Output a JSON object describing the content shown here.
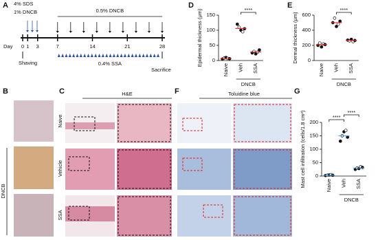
{
  "panel_labels": [
    "A",
    "B",
    "C",
    "D",
    "E",
    "F",
    "G"
  ],
  "timeline": {
    "day_label": "Day",
    "days": [
      0,
      1,
      3,
      7,
      14,
      21,
      28
    ],
    "sds": "4% SDS",
    "dncb_initial": "1% DNCB",
    "dncb_repeat": "0.5% DNCB",
    "ssa": "0.4% SSA",
    "shaving": "Shaving",
    "sacrifice": "Sacrifice"
  },
  "image_rows": [
    "Naive",
    "Vehicle",
    "SSA"
  ],
  "image_group": "DNCB",
  "stain_titles": [
    "H&E",
    "Toluidine blue"
  ],
  "chart_data": [
    {
      "type": "dot",
      "ylabel": "Epidermal thickness (μm)",
      "categories": [
        "Naive",
        "Veh",
        "SSA"
      ],
      "group_label": "DNCB",
      "ylim": [
        0,
        150
      ],
      "yticks": [
        0,
        50,
        100,
        150
      ],
      "values": [
        [
          5,
          8,
          10,
          7,
          6
        ],
        [
          120,
          110,
          100,
          95,
          105
        ],
        [
          25,
          30,
          22,
          28,
          35
        ]
      ],
      "means": [
        7,
        106,
        28
      ],
      "mean_color": "#e03030",
      "point_color": "#111111",
      "comparisons": [
        {
          "groups": [
            1,
            2
          ],
          "label": "****"
        }
      ]
    },
    {
      "type": "dot",
      "ylabel": "Dermal thickness (μm)",
      "categories": [
        "Naive",
        "Veh",
        "SSA"
      ],
      "group_label": "DNCB",
      "ylim": [
        0,
        600
      ],
      "yticks": [
        0,
        200,
        400,
        600
      ],
      "values": [
        [
          200,
          230,
          180,
          220,
          210
        ],
        [
          500,
          560,
          450,
          480,
          520
        ],
        [
          270,
          260,
          280,
          250,
          265
        ]
      ],
      "means": [
        210,
        500,
        265
      ],
      "mean_color": "#e03030",
      "point_color": "#111111",
      "comparisons": [
        {
          "groups": [
            1,
            2
          ],
          "label": "****"
        }
      ]
    },
    {
      "type": "dot",
      "ylabel": "Mast cell infiltration (cells/1.8 cm²)",
      "categories": [
        "Naive",
        "Veh",
        "SSA"
      ],
      "group_label": "DNCB",
      "ylim": [
        0,
        200
      ],
      "yticks": [
        0,
        50,
        100,
        150,
        200
      ],
      "values": [
        [
          2,
          3,
          4,
          5,
          3
        ],
        [
          130,
          150,
          165,
          170,
          145
        ],
        [
          25,
          30,
          28,
          35,
          32
        ]
      ],
      "means": [
        3,
        150,
        30
      ],
      "mean_color": "#4aa0e0",
      "point_color": "#111111",
      "comparisons": [
        {
          "groups": [
            0,
            1
          ],
          "label": "****"
        },
        {
          "groups": [
            1,
            2
          ],
          "label": "****"
        }
      ]
    }
  ]
}
